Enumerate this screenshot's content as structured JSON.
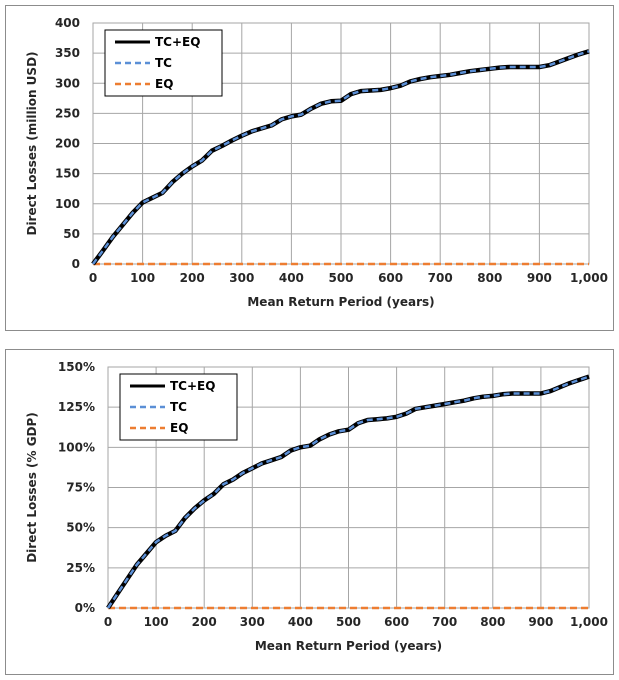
{
  "chart_data": [
    {
      "type": "line",
      "xlabel": "Mean Return Period (years)",
      "ylabel": "Direct Losses (million USD)",
      "xlim": [
        0,
        1000
      ],
      "ylim": [
        0,
        400
      ],
      "xticks": [
        "0",
        "100",
        "200",
        "300",
        "400",
        "500",
        "600",
        "700",
        "800",
        "900",
        "1,000"
      ],
      "yticks": [
        "0",
        "50",
        "100",
        "150",
        "200",
        "250",
        "300",
        "350",
        "400"
      ],
      "grid": true,
      "legend_position": "top-left",
      "series": [
        {
          "name": "TC+EQ",
          "color": "#000000",
          "style": "solid",
          "x": [
            0,
            20,
            40,
            60,
            80,
            100,
            120,
            140,
            160,
            180,
            200,
            220,
            240,
            260,
            280,
            300,
            320,
            340,
            360,
            380,
            400,
            420,
            440,
            460,
            480,
            500,
            520,
            540,
            560,
            580,
            600,
            620,
            640,
            660,
            680,
            700,
            720,
            740,
            760,
            780,
            800,
            820,
            840,
            860,
            880,
            900,
            920,
            940,
            960,
            980,
            1000
          ],
          "y": [
            0,
            22,
            45,
            65,
            85,
            102,
            110,
            118,
            136,
            150,
            162,
            172,
            188,
            196,
            205,
            213,
            220,
            225,
            230,
            240,
            245,
            248,
            258,
            266,
            270,
            271,
            282,
            287,
            288,
            289,
            292,
            296,
            303,
            307,
            310,
            312,
            314,
            317,
            320,
            322,
            324,
            326,
            327,
            327,
            327,
            327,
            330,
            336,
            342,
            348,
            353
          ]
        },
        {
          "name": "TC",
          "color": "#5b8fd6",
          "style": "dashed",
          "x": [
            0,
            20,
            40,
            60,
            80,
            100,
            120,
            140,
            160,
            180,
            200,
            220,
            240,
            260,
            280,
            300,
            320,
            340,
            360,
            380,
            400,
            420,
            440,
            460,
            480,
            500,
            520,
            540,
            560,
            580,
            600,
            620,
            640,
            660,
            680,
            700,
            720,
            740,
            760,
            780,
            800,
            820,
            840,
            860,
            880,
            900,
            920,
            940,
            960,
            980,
            1000
          ],
          "y": [
            0,
            22,
            45,
            65,
            85,
            102,
            110,
            118,
            136,
            150,
            162,
            172,
            188,
            196,
            205,
            213,
            220,
            225,
            230,
            240,
            245,
            248,
            258,
            266,
            270,
            271,
            282,
            287,
            288,
            289,
            292,
            296,
            303,
            307,
            310,
            312,
            314,
            317,
            320,
            322,
            324,
            326,
            327,
            327,
            327,
            327,
            330,
            336,
            342,
            348,
            353
          ]
        },
        {
          "name": "EQ",
          "color": "#ed7d31",
          "style": "dashed",
          "x": [
            0,
            1000
          ],
          "y": [
            0,
            0
          ]
        }
      ]
    },
    {
      "type": "line",
      "xlabel": "Mean Return Period (years)",
      "ylabel": "Direct Losses (% GDP)",
      "xlim": [
        0,
        1000
      ],
      "ylim": [
        0,
        150
      ],
      "xticks": [
        "0",
        "100",
        "200",
        "300",
        "400",
        "500",
        "600",
        "700",
        "800",
        "900",
        "1,000"
      ],
      "yticks": [
        "0%",
        "25%",
        "50%",
        "75%",
        "100%",
        "125%",
        "150%"
      ],
      "grid": true,
      "legend_position": "top-left",
      "series": [
        {
          "name": "TC+EQ",
          "color": "#000000",
          "style": "solid",
          "x": [
            0,
            20,
            40,
            60,
            80,
            100,
            120,
            140,
            160,
            180,
            200,
            220,
            240,
            260,
            280,
            300,
            320,
            340,
            360,
            380,
            400,
            420,
            440,
            460,
            480,
            500,
            520,
            540,
            560,
            580,
            600,
            620,
            640,
            660,
            680,
            700,
            720,
            740,
            760,
            780,
            800,
            820,
            840,
            860,
            880,
            900,
            920,
            940,
            960,
            980,
            1000
          ],
          "y": [
            0,
            9,
            18,
            27,
            34,
            41,
            45,
            48,
            56,
            62,
            67,
            71,
            77,
            80,
            84,
            87,
            90,
            92,
            94,
            98,
            100,
            101,
            105,
            108,
            110,
            111,
            115,
            117,
            117.5,
            118,
            119,
            121,
            124,
            125,
            126,
            127,
            128,
            129,
            130.5,
            131.5,
            132,
            133,
            133.5,
            133.5,
            133.5,
            133.5,
            135,
            137.5,
            140,
            142,
            144
          ]
        },
        {
          "name": "TC",
          "color": "#5b8fd6",
          "style": "dashed",
          "x": [
            0,
            20,
            40,
            60,
            80,
            100,
            120,
            140,
            160,
            180,
            200,
            220,
            240,
            260,
            280,
            300,
            320,
            340,
            360,
            380,
            400,
            420,
            440,
            460,
            480,
            500,
            520,
            540,
            560,
            580,
            600,
            620,
            640,
            660,
            680,
            700,
            720,
            740,
            760,
            780,
            800,
            820,
            840,
            860,
            880,
            900,
            920,
            940,
            960,
            980,
            1000
          ],
          "y": [
            0,
            9,
            18,
            27,
            34,
            41,
            45,
            48,
            56,
            62,
            67,
            71,
            77,
            80,
            84,
            87,
            90,
            92,
            94,
            98,
            100,
            101,
            105,
            108,
            110,
            111,
            115,
            117,
            117.5,
            118,
            119,
            121,
            124,
            125,
            126,
            127,
            128,
            129,
            130.5,
            131.5,
            132,
            133,
            133.5,
            133.5,
            133.5,
            133.5,
            135,
            137.5,
            140,
            142,
            144
          ]
        },
        {
          "name": "EQ",
          "color": "#ed7d31",
          "style": "dashed",
          "x": [
            0,
            1000
          ],
          "y": [
            0,
            0
          ]
        }
      ]
    }
  ]
}
